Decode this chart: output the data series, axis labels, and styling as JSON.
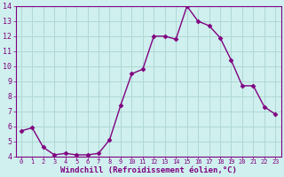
{
  "x": [
    0,
    1,
    2,
    3,
    4,
    5,
    6,
    7,
    8,
    9,
    10,
    11,
    12,
    13,
    14,
    15,
    16,
    17,
    18,
    19,
    20,
    21,
    22,
    23
  ],
  "y": [
    5.7,
    5.9,
    4.6,
    4.1,
    4.2,
    4.1,
    4.1,
    4.2,
    5.1,
    7.4,
    9.5,
    9.8,
    12.0,
    12.0,
    11.8,
    14.0,
    13.0,
    12.7,
    11.9,
    10.4,
    8.7,
    8.7,
    7.3,
    6.8
  ],
  "line_color": "#800080",
  "marker": "D",
  "marker_size": 2.5,
  "bg_color": "#cff0ee",
  "grid_color": "#b0d8d4",
  "xlabel": "Windchill (Refroidissement éolien,°C)",
  "xlabel_color": "#800080",
  "tick_color": "#800080",
  "spine_color": "#800080",
  "ylim": [
    4,
    14
  ],
  "xlim_min": -0.5,
  "xlim_max": 23.5,
  "yticks": [
    4,
    5,
    6,
    7,
    8,
    9,
    10,
    11,
    12,
    13,
    14
  ],
  "xticks": [
    0,
    1,
    2,
    3,
    4,
    5,
    6,
    7,
    8,
    9,
    10,
    11,
    12,
    13,
    14,
    15,
    16,
    17,
    18,
    19,
    20,
    21,
    22,
    23
  ],
  "xlabel_fontsize": 6.5,
  "xtick_fontsize": 5.0,
  "ytick_fontsize": 6.0,
  "linewidth": 1.0
}
